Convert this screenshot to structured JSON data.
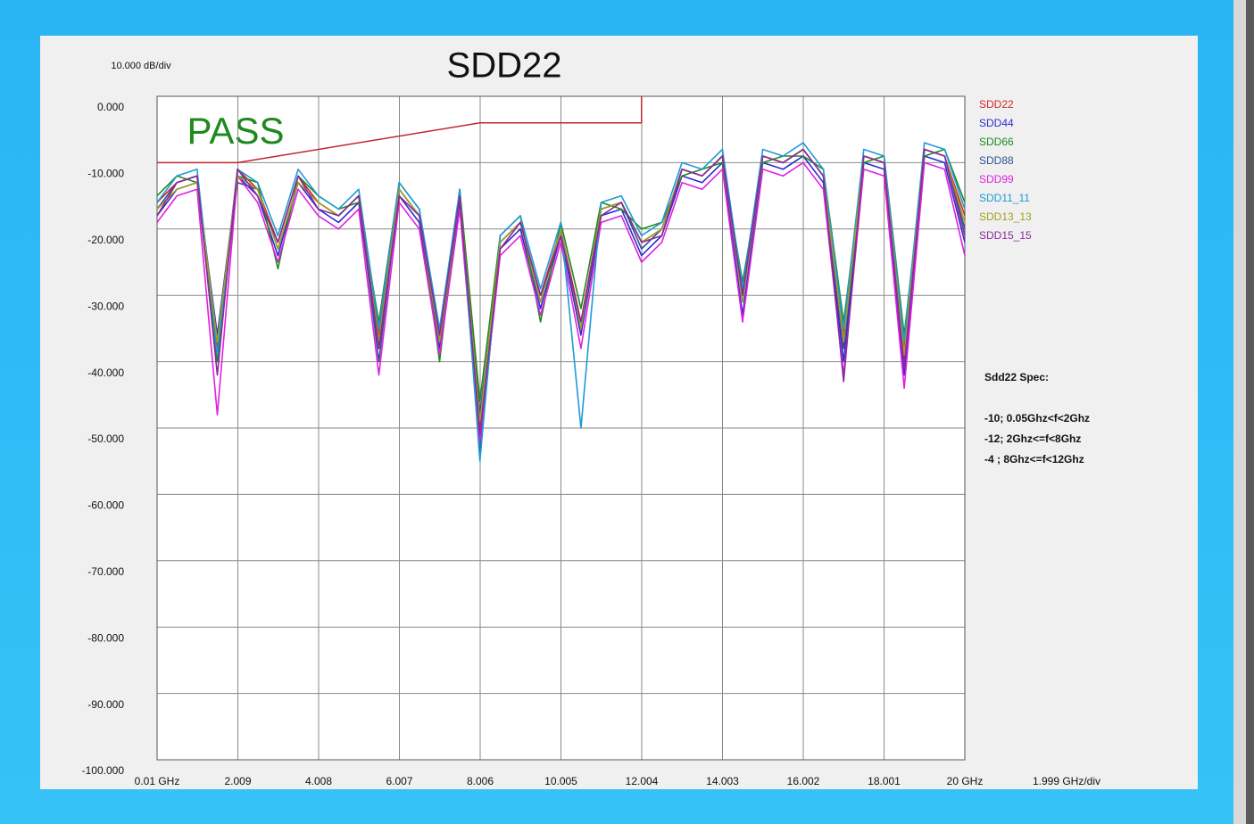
{
  "chart_data": {
    "type": "line",
    "title": "SDD22",
    "y_scale_label": "10.000 dB/div",
    "x_scale_label": "1.999 GHz/div",
    "status": "PASS",
    "spec": {
      "title": "Sdd22 Spec:",
      "lines": [
        "-10;  0.05Ghz<f<2Ghz",
        "-12; 2Ghz<=f<8Ghz",
        "-4 ; 8Ghz<=f<12Ghz"
      ]
    },
    "legend": "right",
    "grid": true,
    "xlim": [
      0.01,
      20
    ],
    "ylim": [
      -100,
      0
    ],
    "xticks": [
      {
        "value": 0.01,
        "label": "0.01 GHz"
      },
      2.009,
      4.008,
      6.007,
      8.006,
      10.005,
      12.004,
      14.003,
      16.002,
      18.001,
      {
        "value": 20,
        "label": "20 GHz"
      }
    ],
    "yticks": [
      {
        "value": 0,
        "label": "0.000"
      },
      {
        "value": -10,
        "label": "-10.000"
      },
      {
        "value": -20,
        "label": "-20.000"
      },
      {
        "value": -30,
        "label": "-30.000"
      },
      {
        "value": -40,
        "label": "-40.000"
      },
      {
        "value": -50,
        "label": "-50.000"
      },
      {
        "value": -60,
        "label": "-60.000"
      },
      {
        "value": -70,
        "label": "-70.000"
      },
      {
        "value": -80,
        "label": "-80.000"
      },
      {
        "value": -90,
        "label": "-90.000"
      },
      {
        "value": -100,
        "label": "-100.000"
      }
    ],
    "limit": {
      "color": "#c0272d",
      "x": [
        0.01,
        2,
        8,
        12,
        12
      ],
      "values": [
        -10,
        -10,
        -4,
        -4,
        0
      ]
    },
    "x": [
      0.01,
      0.5,
      1,
      1.5,
      2,
      2.5,
      3,
      3.5,
      4,
      4.5,
      5,
      5.5,
      6,
      6.5,
      7,
      7.5,
      8,
      8.5,
      9,
      9.5,
      10,
      10.5,
      11,
      11.5,
      12,
      12.5,
      13,
      13.5,
      14,
      14.5,
      15,
      15.5,
      16,
      16.5,
      17,
      17.5,
      18,
      18.5,
      19,
      19.5,
      20
    ],
    "series": [
      {
        "name": "SDD22",
        "color": "#d8232a",
        "values": [
          -16,
          -13,
          -12,
          -38,
          -11,
          -14,
          -22,
          -12,
          -16,
          -18,
          -15,
          -36,
          -14,
          -18,
          -36,
          -15,
          -50,
          -22,
          -19,
          -30,
          -20,
          -34,
          -17,
          -16,
          -22,
          -20,
          -11,
          -12,
          -9,
          -30,
          -9,
          -10,
          -8,
          -12,
          -36,
          -9,
          -10,
          -38,
          -8,
          -9,
          -18
        ]
      },
      {
        "name": "SDD44",
        "color": "#2b2bd0",
        "values": [
          -18,
          -14,
          -13,
          -36,
          -12,
          -15,
          -24,
          -13,
          -17,
          -19,
          -16,
          -38,
          -15,
          -19,
          -38,
          -16,
          -48,
          -23,
          -20,
          -32,
          -21,
          -36,
          -18,
          -17,
          -24,
          -21,
          -12,
          -13,
          -10,
          -33,
          -10,
          -11,
          -9,
          -13,
          -40,
          -10,
          -11,
          -42,
          -9,
          -10,
          -22
        ]
      },
      {
        "name": "SDD66",
        "color": "#1e8a1e",
        "values": [
          -15,
          -12,
          -13,
          -40,
          -12,
          -13,
          -26,
          -12,
          -15,
          -17,
          -16,
          -34,
          -13,
          -17,
          -40,
          -14,
          -46,
          -21,
          -18,
          -34,
          -19,
          -32,
          -16,
          -17,
          -20,
          -19,
          -12,
          -11,
          -10,
          -28,
          -10,
          -9,
          -9,
          -11,
          -34,
          -10,
          -9,
          -36,
          -9,
          -8,
          -16
        ]
      },
      {
        "name": "SDD88",
        "color": "#2f4f8f",
        "values": [
          -17,
          -13,
          -12,
          -37,
          -13,
          -14,
          -23,
          -13,
          -16,
          -18,
          -15,
          -40,
          -14,
          -18,
          -37,
          -15,
          -54,
          -22,
          -19,
          -31,
          -20,
          -35,
          -17,
          -16,
          -23,
          -20,
          -11,
          -12,
          -9,
          -31,
          -9,
          -10,
          -8,
          -12,
          -38,
          -9,
          -10,
          -40,
          -8,
          -9,
          -20
        ]
      },
      {
        "name": "SDD99",
        "color": "#e020e0",
        "values": [
          -19,
          -15,
          -14,
          -48,
          -12,
          -16,
          -25,
          -14,
          -18,
          -20,
          -17,
          -42,
          -16,
          -20,
          -39,
          -17,
          -52,
          -24,
          -21,
          -33,
          -22,
          -38,
          -19,
          -18,
          -25,
          -22,
          -13,
          -14,
          -11,
          -34,
          -11,
          -12,
          -10,
          -14,
          -42,
          -11,
          -12,
          -44,
          -10,
          -11,
          -24
        ]
      },
      {
        "name": "SDD11_11",
        "color": "#1e9ad6",
        "values": [
          -16,
          -12,
          -11,
          -39,
          -11,
          -13,
          -21,
          -11,
          -15,
          -17,
          -14,
          -35,
          -13,
          -17,
          -35,
          -14,
          -55,
          -21,
          -18,
          -29,
          -19,
          -50,
          -16,
          -15,
          -21,
          -19,
          -10,
          -11,
          -8,
          -29,
          -8,
          -9,
          -7,
          -11,
          -35,
          -8,
          -9,
          -37,
          -7,
          -8,
          -17
        ]
      },
      {
        "name": "SDD13_13",
        "color": "#a0a020",
        "values": [
          -17,
          -14,
          -13,
          -37,
          -12,
          -14,
          -23,
          -13,
          -16,
          -18,
          -15,
          -37,
          -14,
          -18,
          -37,
          -15,
          -49,
          -22,
          -19,
          -31,
          -20,
          -35,
          -17,
          -16,
          -22,
          -20,
          -11,
          -12,
          -9,
          -31,
          -9,
          -10,
          -8,
          -12,
          -37,
          -9,
          -10,
          -39,
          -8,
          -9,
          -19
        ]
      },
      {
        "name": "SDD15_15",
        "color": "#8a2a9a",
        "values": [
          -18,
          -13,
          -12,
          -42,
          -11,
          -15,
          -22,
          -12,
          -17,
          -18,
          -15,
          -38,
          -15,
          -18,
          -36,
          -15,
          -51,
          -23,
          -19,
          -30,
          -21,
          -34,
          -18,
          -16,
          -22,
          -21,
          -11,
          -12,
          -9,
          -30,
          -9,
          -10,
          -8,
          -12,
          -43,
          -9,
          -10,
          -41,
          -8,
          -9,
          -21
        ]
      }
    ]
  }
}
